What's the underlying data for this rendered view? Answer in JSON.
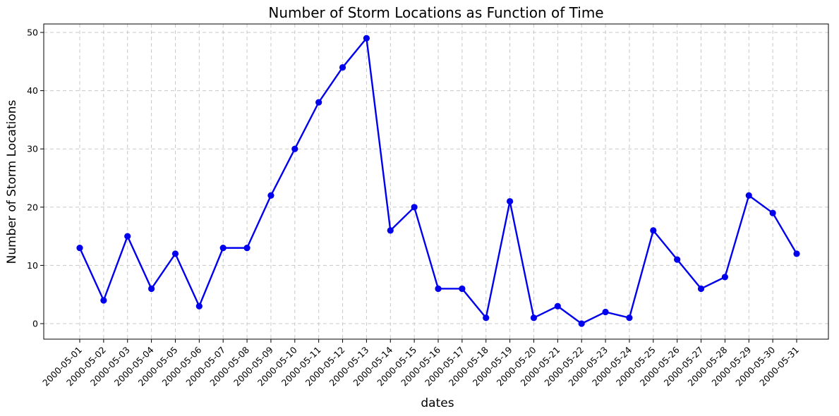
{
  "chart_data": {
    "type": "line",
    "title": "Number of Storm Locations as Function of Time",
    "xlabel": "dates",
    "ylabel": "Number of Storm Locations",
    "categories": [
      "2000-05-01",
      "2000-05-02",
      "2000-05-03",
      "2000-05-04",
      "2000-05-05",
      "2000-05-06",
      "2000-05-07",
      "2000-05-08",
      "2000-05-09",
      "2000-05-10",
      "2000-05-11",
      "2000-05-12",
      "2000-05-13",
      "2000-05-14",
      "2000-05-15",
      "2000-05-16",
      "2000-05-17",
      "2000-05-18",
      "2000-05-19",
      "2000-05-20",
      "2000-05-21",
      "2000-05-22",
      "2000-05-23",
      "2000-05-24",
      "2000-05-25",
      "2000-05-26",
      "2000-05-27",
      "2000-05-28",
      "2000-05-29",
      "2000-05-30",
      "2000-05-31"
    ],
    "series": [
      {
        "values": [
          13,
          4,
          15,
          6,
          12,
          3,
          13,
          13,
          22,
          30,
          38,
          44,
          49,
          16,
          20,
          6,
          6,
          1,
          21,
          1,
          3,
          0,
          2,
          1,
          16,
          11,
          6,
          8,
          22,
          19,
          12
        ],
        "color": "#0000ee",
        "marker": "circle"
      }
    ],
    "ylim": [
      0,
      50
    ],
    "yticks": [
      0,
      10,
      20,
      30,
      40,
      50
    ],
    "grid": true,
    "legend": "none"
  }
}
